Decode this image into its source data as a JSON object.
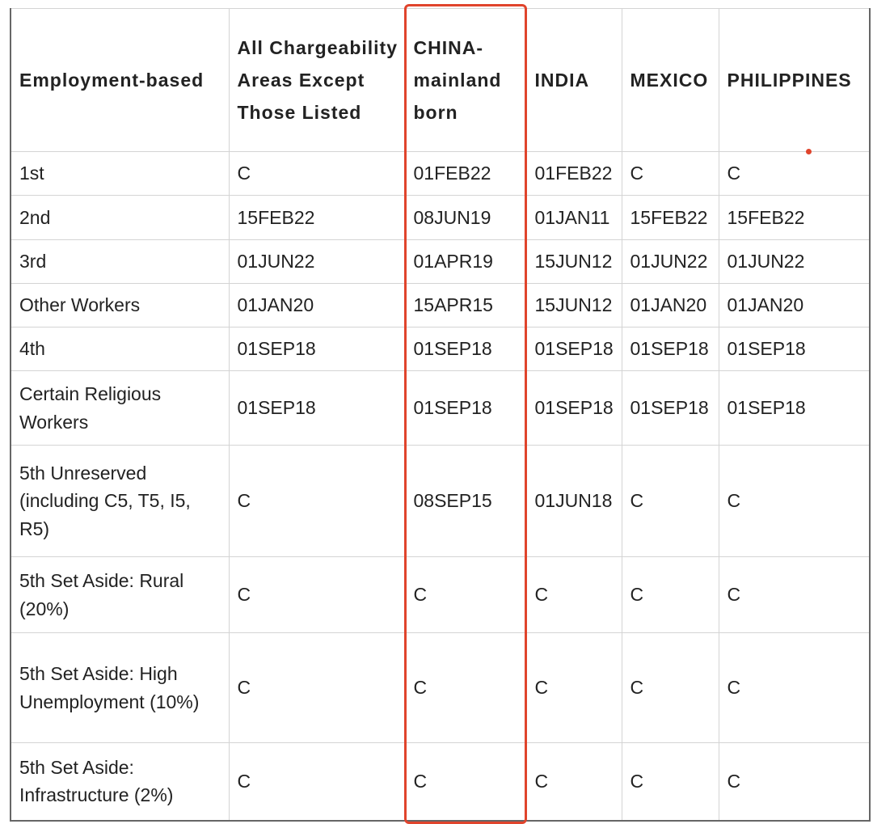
{
  "table": {
    "header": [
      "Employment-based",
      "All Chargeability Areas Except Those Listed",
      "CHINA-mainland born",
      "INDIA",
      "MEXICO",
      "PHILIPPINES"
    ],
    "rows": [
      [
        "1st",
        "C",
        "01FEB22",
        "01FEB22",
        "C",
        "C"
      ],
      [
        "2nd",
        "15FEB22",
        "08JUN19",
        "01JAN11",
        "15FEB22",
        "15FEB22"
      ],
      [
        "3rd",
        "01JUN22",
        "01APR19",
        "15JUN12",
        "01JUN22",
        "01JUN22"
      ],
      [
        "Other Workers",
        "01JAN20",
        "15APR15",
        "15JUN12",
        "01JAN20",
        "01JAN20"
      ],
      [
        "4th",
        "01SEP18",
        "01SEP18",
        "01SEP18",
        "01SEP18",
        "01SEP18"
      ],
      [
        "Certain Religious Workers",
        "01SEP18",
        "01SEP18",
        "01SEP18",
        "01SEP18",
        "01SEP18"
      ],
      [
        "5th Unreserved (including C5, T5, I5, R5)",
        "C",
        "08SEP15",
        "01JUN18",
        "C",
        "C"
      ],
      [
        "5th Set Aside: Rural (20%)",
        "C",
        "C",
        "C",
        "C",
        "C"
      ],
      [
        "5th Set Aside: High Unemployment (10%)",
        "C",
        "C",
        "C",
        "C",
        "C"
      ],
      [
        "5th Set Aside: Infrastructure (2%)",
        "C",
        "C",
        "C",
        "C",
        "C"
      ]
    ]
  }
}
